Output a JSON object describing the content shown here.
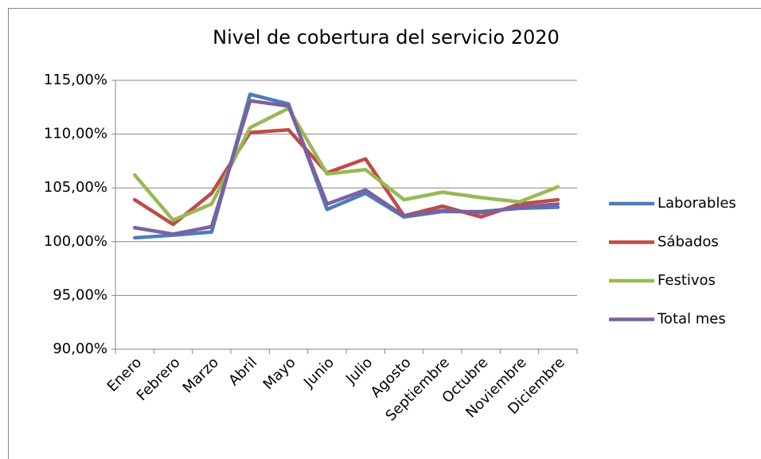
{
  "chart_data": {
    "type": "line",
    "title": "Nivel de cobertura del servicio 2020",
    "categories": [
      "Enero",
      "Febrero",
      "Marzo",
      "Abril",
      "Mayo",
      "Junio",
      "Julio",
      "Agosto",
      "Septiembre",
      "Octubre",
      "Noviembre",
      "Diciembre"
    ],
    "series": [
      {
        "name": "Laborables",
        "color": "#4a7ebb",
        "values": [
          100.36,
          100.6,
          100.9,
          113.7,
          112.8,
          103.0,
          104.5,
          102.3,
          102.8,
          102.8,
          103.1,
          103.2
        ]
      },
      {
        "name": "Sábados",
        "color": "#be4b48",
        "values": [
          103.9,
          101.6,
          104.5,
          110.15,
          110.4,
          106.4,
          107.7,
          102.4,
          103.3,
          102.3,
          103.5,
          103.9
        ]
      },
      {
        "name": "Festivos",
        "color": "#98b954",
        "values": [
          106.2,
          102.0,
          103.5,
          110.6,
          112.4,
          106.3,
          106.7,
          103.9,
          104.6,
          104.1,
          103.7,
          105.1
        ]
      },
      {
        "name": "Total mes",
        "color": "#7d60a0",
        "values": [
          101.3,
          100.7,
          101.4,
          113.1,
          112.6,
          103.5,
          104.8,
          102.4,
          102.9,
          102.7,
          103.2,
          103.5
        ]
      }
    ],
    "ylim": [
      90,
      115
    ],
    "yticks": [
      {
        "value": 90,
        "label": "90,00%"
      },
      {
        "value": 95,
        "label": "95,00%"
      },
      {
        "value": 100,
        "label": "100,00%"
      },
      {
        "value": 105,
        "label": "105,00%"
      },
      {
        "value": 110,
        "label": "110,00%"
      },
      {
        "value": 115,
        "label": "115,00%"
      }
    ],
    "grid": true,
    "legend": "right"
  }
}
